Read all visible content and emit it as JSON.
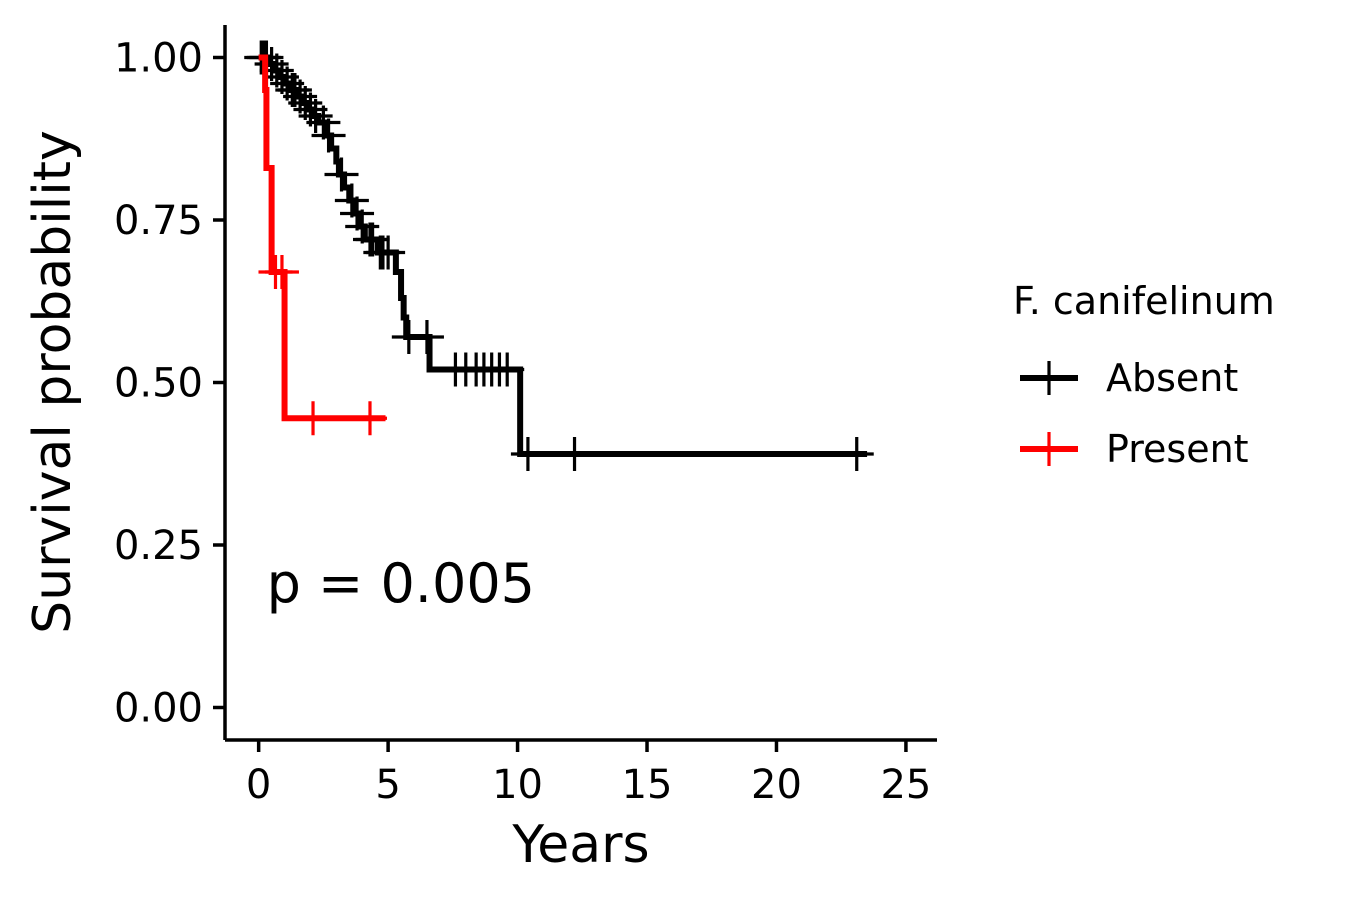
{
  "chart_data": {
    "type": "line",
    "subtype": "kaplan-meier",
    "xlabel": "Years",
    "ylabel": "Survival probability",
    "xlim": [
      -1.3,
      26.2
    ],
    "ylim": [
      -0.05,
      1.05
    ],
    "x_ticks": [
      0,
      5,
      10,
      15,
      20,
      25
    ],
    "y_ticks": [
      0.0,
      0.25,
      0.5,
      0.75,
      1.0
    ],
    "x_tick_labels": [
      "0",
      "5",
      "10",
      "15",
      "20",
      "25"
    ],
    "y_tick_labels": [
      "0.00",
      "0.25",
      "0.50",
      "0.75",
      "1.00"
    ],
    "annotation": "p = 0.005",
    "annotation_position": {
      "x": 0.5,
      "y": 0.19
    },
    "legend": {
      "title": "F. canifelinum",
      "placement": "right"
    },
    "grid": false,
    "series": [
      {
        "name": "Absent",
        "color": "#000000",
        "steps": [
          [
            0,
            1.0
          ],
          [
            0.4,
            0.99
          ],
          [
            0.6,
            0.98
          ],
          [
            0.8,
            0.97
          ],
          [
            1.0,
            0.96
          ],
          [
            1.2,
            0.95
          ],
          [
            1.5,
            0.94
          ],
          [
            1.7,
            0.93
          ],
          [
            1.9,
            0.92
          ],
          [
            2.1,
            0.91
          ],
          [
            2.3,
            0.9
          ],
          [
            2.6,
            0.88
          ],
          [
            2.8,
            0.86
          ],
          [
            3.0,
            0.84
          ],
          [
            3.1,
            0.82
          ],
          [
            3.3,
            0.8
          ],
          [
            3.5,
            0.78
          ],
          [
            3.7,
            0.76
          ],
          [
            3.9,
            0.74
          ],
          [
            4.1,
            0.72
          ],
          [
            4.6,
            0.7
          ],
          [
            5.3,
            0.67
          ],
          [
            5.5,
            0.63
          ],
          [
            5.6,
            0.6
          ],
          [
            5.7,
            0.57
          ],
          [
            6.6,
            0.52
          ],
          [
            10.1,
            0.39
          ],
          [
            23.5,
            0.39
          ]
        ],
        "censored": [
          [
            0.1,
            1.0
          ],
          [
            0.2,
            1.0
          ],
          [
            0.3,
            1.0
          ],
          [
            0.5,
            0.99
          ],
          [
            0.7,
            0.98
          ],
          [
            0.9,
            0.97
          ],
          [
            1.1,
            0.96
          ],
          [
            1.3,
            0.95
          ],
          [
            1.4,
            0.95
          ],
          [
            1.6,
            0.94
          ],
          [
            1.8,
            0.93
          ],
          [
            2.0,
            0.92
          ],
          [
            2.2,
            0.91
          ],
          [
            2.5,
            0.9
          ],
          [
            2.7,
            0.88
          ],
          [
            3.2,
            0.82
          ],
          [
            3.6,
            0.78
          ],
          [
            3.8,
            0.76
          ],
          [
            4.0,
            0.74
          ],
          [
            4.3,
            0.72
          ],
          [
            4.4,
            0.72
          ],
          [
            4.7,
            0.7
          ],
          [
            4.8,
            0.7
          ],
          [
            5.0,
            0.7
          ],
          [
            5.8,
            0.57
          ],
          [
            6.5,
            0.57
          ],
          [
            7.6,
            0.52
          ],
          [
            8.0,
            0.52
          ],
          [
            8.4,
            0.52
          ],
          [
            8.7,
            0.52
          ],
          [
            9.0,
            0.52
          ],
          [
            9.3,
            0.52
          ],
          [
            9.6,
            0.52
          ],
          [
            10.4,
            0.39
          ],
          [
            12.2,
            0.39
          ],
          [
            23.1,
            0.39
          ]
        ]
      },
      {
        "name": "Present",
        "color": "#ff0000",
        "steps": [
          [
            0,
            1.0
          ],
          [
            0.25,
            0.95
          ],
          [
            0.3,
            0.83
          ],
          [
            0.5,
            0.67
          ],
          [
            1.0,
            0.445
          ],
          [
            4.9,
            0.445
          ]
        ],
        "censored": [
          [
            0.65,
            0.67
          ],
          [
            0.9,
            0.67
          ],
          [
            2.1,
            0.445
          ],
          [
            4.3,
            0.445
          ]
        ]
      }
    ]
  }
}
